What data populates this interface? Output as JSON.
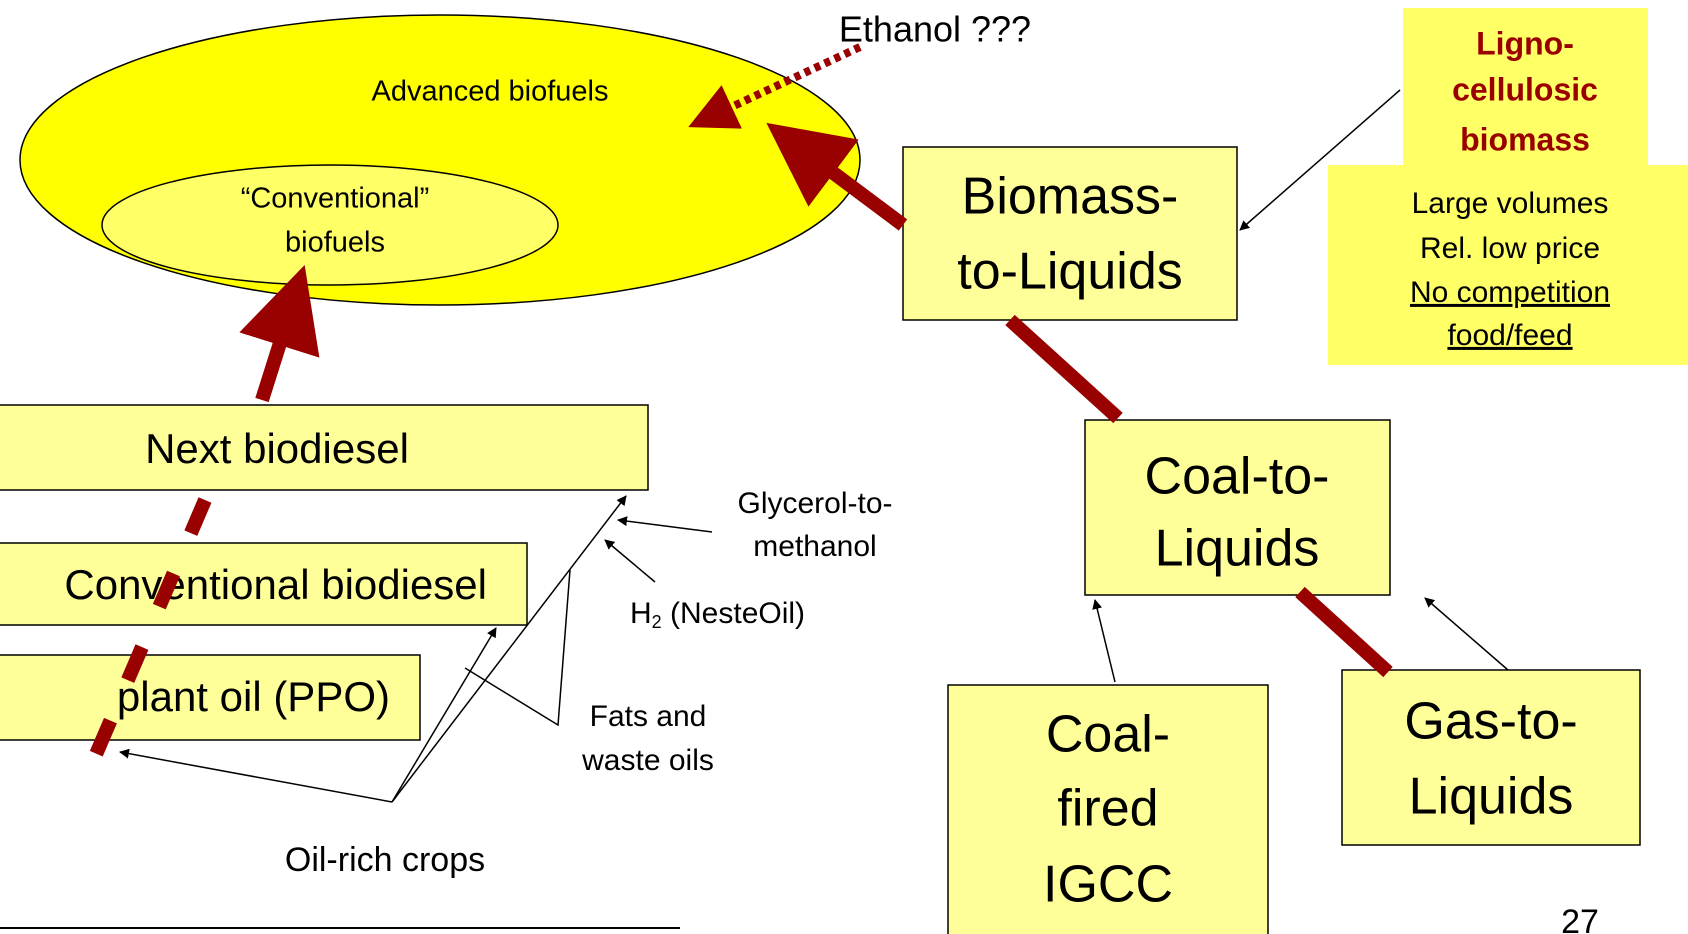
{
  "ethanol": "Ethanol ???",
  "advanced": "Advanced biofuels",
  "conventional": [
    "“Conventional”",
    "biofuels"
  ],
  "btl": [
    "Biomass-",
    "to-Liquids"
  ],
  "ligno": [
    "Ligno-",
    "cellulosic",
    "biomass"
  ],
  "ligno_props": [
    "Large volumes",
    "Rel. low price",
    "No competition",
    "food/feed"
  ],
  "next_biodiesel": "Next biodiesel",
  "conv_biodiesel": "Conventional biodiesel",
  "ppo": "plant oil (PPO)",
  "glycerol": [
    "Glycerol-to-",
    "methanol"
  ],
  "h2": {
    "main": "H",
    "sub": "2",
    "rest": " (NesteOil)"
  },
  "fats": [
    "Fats and",
    "waste oils"
  ],
  "crops": "Oil-rich crops",
  "ctl": [
    "Coal-to-",
    "Liquids"
  ],
  "igcc": [
    "Coal-",
    "fired",
    "IGCC"
  ],
  "gtl": [
    "Gas-to-",
    "Liquids"
  ],
  "page_number": "27"
}
